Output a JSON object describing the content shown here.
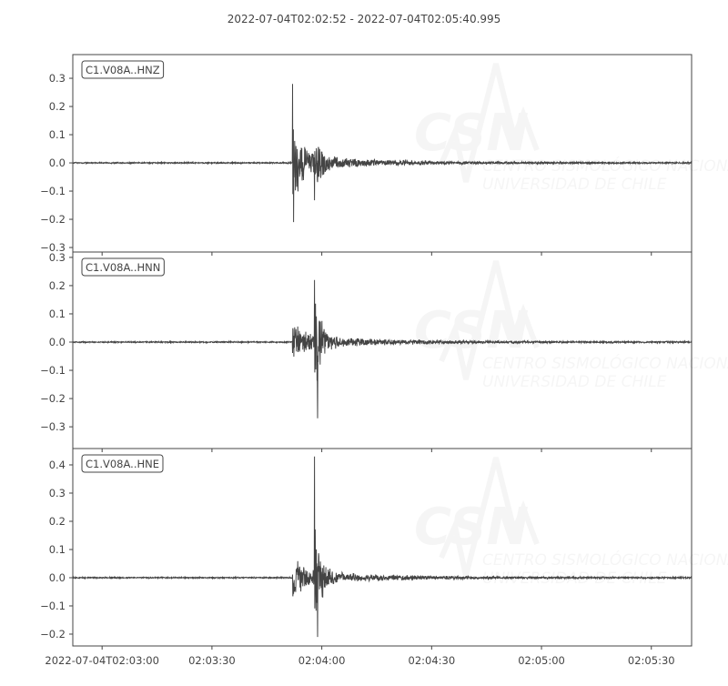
{
  "chart_data": {
    "type": "line",
    "title": "2022-07-04T02:02:52  -  2022-07-04T02:05:40.995",
    "start_time": "2022-07-04T02:02:52",
    "end_time": "2022-07-04T02:05:40.995",
    "x_ticks": [
      "2022-07-04T02:03:00",
      "02:03:30",
      "02:04:00",
      "02:04:30",
      "02:05:00",
      "02:05:30"
    ],
    "x_tick_seconds": [
      8,
      38,
      68,
      98,
      128,
      158
    ],
    "line_color": "#444444",
    "grid": false,
    "traces": [
      {
        "name": "C1.V08A..HNZ",
        "ylim": [
          -0.316,
          0.384
        ],
        "y_ticks": [
          0.3,
          0.2,
          0.1,
          0.0,
          -0.1,
          -0.2,
          -0.3
        ],
        "y_tick_labels": [
          "0.3",
          "0.2",
          "0.1",
          "0.0",
          "−0.1",
          "−0.2",
          "−0.3"
        ],
        "p_arrival_s": 60,
        "s_arrival_s": 66,
        "p_amplitude": 0.15,
        "s_amplitude": 0.11,
        "max": 0.28,
        "min": -0.21
      },
      {
        "name": "C1.V08A..HNN",
        "ylim": [
          -0.377,
          0.319
        ],
        "y_ticks": [
          0.3,
          0.2,
          0.1,
          0.0,
          -0.1,
          -0.2,
          -0.3
        ],
        "y_tick_labels": [
          "0.3",
          "0.2",
          "0.1",
          "0.0",
          "−0.1",
          "−0.2",
          "−0.3"
        ],
        "p_arrival_s": 60,
        "s_arrival_s": 66,
        "p_amplitude": 0.06,
        "s_amplitude": 0.2,
        "max": 0.22,
        "min": -0.27
      },
      {
        "name": "C1.V08A..HNE",
        "ylim": [
          -0.242,
          0.458
        ],
        "y_ticks": [
          0.4,
          0.3,
          0.2,
          0.1,
          0.0,
          -0.1,
          -0.2
        ],
        "y_tick_labels": [
          "0.4",
          "0.3",
          "0.2",
          "0.1",
          "0.0",
          "−0.1",
          "−0.2"
        ],
        "p_arrival_s": 60,
        "s_arrival_s": 66,
        "p_amplitude": 0.065,
        "s_amplitude": 0.2,
        "max": 0.43,
        "min": -0.21
      }
    ]
  },
  "watermark": {
    "logo": "CSN",
    "line1": "CENTRO SISMOLÓGICO NACIONAL",
    "line2": "UNIVERSIDAD DE CHILE"
  }
}
